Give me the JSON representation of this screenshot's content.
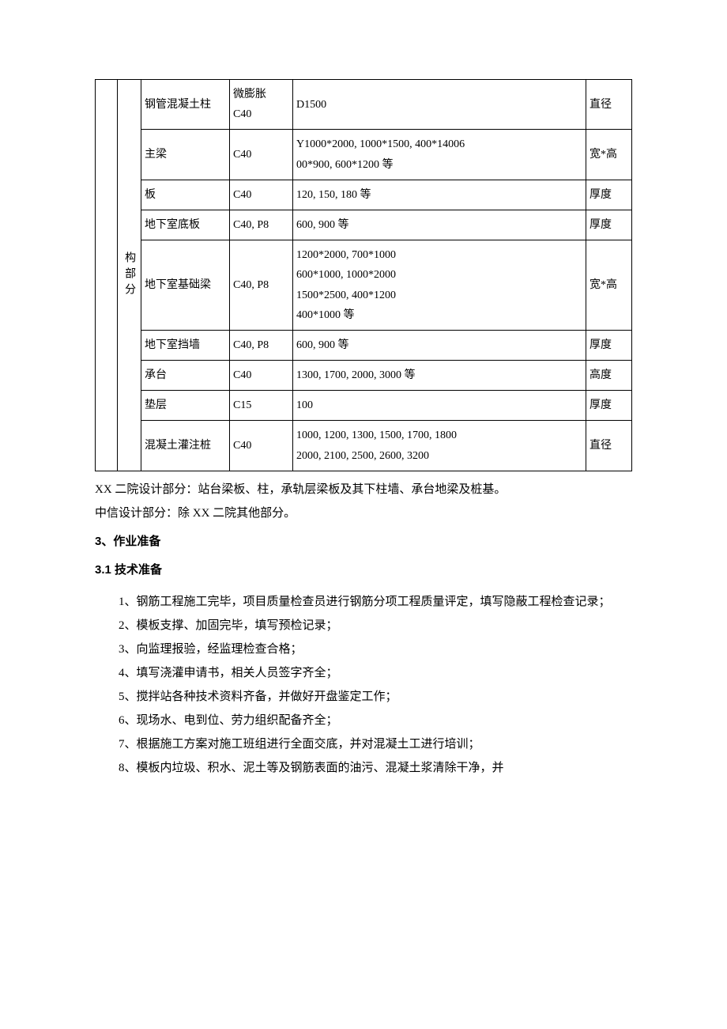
{
  "table": {
    "row_label": "构部分",
    "rows": [
      {
        "name": "钢管混凝土柱",
        "grade": "微膨胀\nC40",
        "spec": "D1500",
        "unit": "直径"
      },
      {
        "name": "主梁",
        "grade": "C40",
        "spec": "Y1000*2000, 1000*1500, 400*14006\n00*900, 600*1200 等",
        "unit": "宽*高"
      },
      {
        "name": "板",
        "grade": "C40",
        "spec": "120, 150, 180 等",
        "unit": "厚度"
      },
      {
        "name": "地下室底板",
        "grade": "C40, P8",
        "spec": "600, 900 等",
        "unit": "厚度"
      },
      {
        "name": "地下室基础梁",
        "grade": "C40, P8",
        "spec": "1200*2000, 700*1000\n600*1000, 1000*2000\n1500*2500, 400*1200\n400*1000 等",
        "unit": "宽*高"
      },
      {
        "name": "地下室挡墙",
        "grade": "C40, P8",
        "spec": "600, 900 等",
        "unit": "厚度"
      },
      {
        "name": "承台",
        "grade": "C40",
        "spec": "1300, 1700, 2000, 3000 等",
        "unit": "高度"
      },
      {
        "name": "垫层",
        "grade": "C15",
        "spec": "100",
        "unit": "厚度"
      },
      {
        "name": "混凝土灌注桩",
        "grade": "C40",
        "spec": "1000, 1200, 1300, 1500, 1700, 1800\n2000, 2100, 2500, 2600, 3200",
        "unit": "直径"
      }
    ]
  },
  "notes": [
    "XX 二院设计部分：站台梁板、柱，承轨层梁板及其下柱墙、承台地梁及桩基。",
    "中信设计部分：除 XX 二院其他部分。"
  ],
  "headings": {
    "h3": "3、作业准备",
    "h31": "3.1 技术准备"
  },
  "prep_items": [
    "1、钢筋工程施工完毕，项目质量检查员进行钢筋分项工程质量评定，填写隐蔽工程检查记录；",
    "2、模板支撑、加固完毕，填写预检记录；",
    "3、向监理报验，经监理检查合格；",
    "4、填写浇灌申请书，相关人员签字齐全；",
    "5、搅拌站各种技术资料齐备，并做好开盘鉴定工作；",
    "6、现场水、电到位、劳力组织配备齐全；",
    "7、根据施工方案对施工班组进行全面交底，并对混凝土工进行培训；",
    "8、模板内垃圾、积水、泥土等及钢筋表面的油污、混凝土浆清除干净，并"
  ]
}
